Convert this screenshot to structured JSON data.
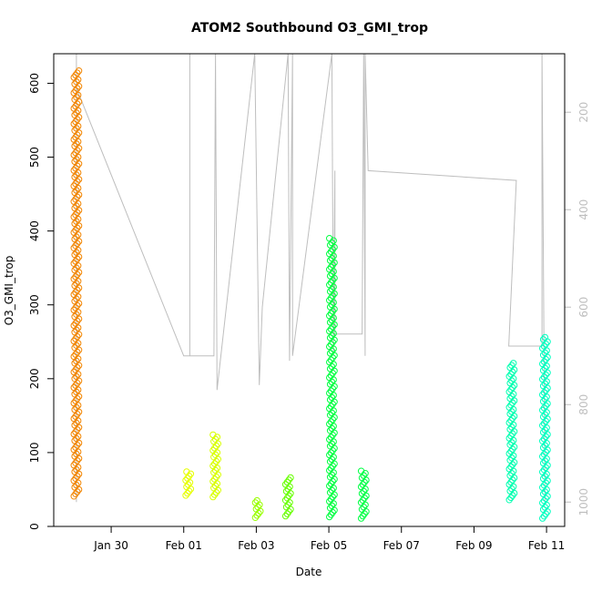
{
  "chart_data": {
    "type": "scatter",
    "title": "ATOM2 Southbound O3_GMI_trop",
    "xlabel": "Date",
    "ylabel": "O3_GMI_trop",
    "xlim": [
      "2017-01-28T10:00",
      "2017-02-11T12:00"
    ],
    "ylim": [
      0,
      640
    ],
    "x_ticks": [
      {
        "date": "2017-01-30",
        "label": "Jan 30"
      },
      {
        "date": "2017-02-01",
        "label": "Feb 01"
      },
      {
        "date": "2017-02-03",
        "label": "Feb 03"
      },
      {
        "date": "2017-02-05",
        "label": "Feb 05"
      },
      {
        "date": "2017-02-07",
        "label": "Feb 07"
      },
      {
        "date": "2017-02-09",
        "label": "Feb 09"
      },
      {
        "date": "2017-02-11",
        "label": "Feb 11"
      }
    ],
    "y_ticks": [
      0,
      100,
      200,
      300,
      400,
      500,
      600
    ],
    "y2_axis": {
      "ticks": [
        200,
        400,
        600,
        800,
        1000
      ],
      "range_top": 80,
      "range_bottom": 1050,
      "reversed": true,
      "color": "#bebebe"
    },
    "marker": "open-circle",
    "series": [
      {
        "date": "2017-01-29T01:00",
        "ymin": 41,
        "ymax": 617,
        "color": "#f28500"
      },
      {
        "date": "2017-02-01T03:00",
        "ymin": 42,
        "ymax": 74,
        "color": "#e6ff00"
      },
      {
        "date": "2017-02-01T21:00",
        "ymin": 40,
        "ymax": 124,
        "color": "#d9ff00"
      },
      {
        "date": "2017-02-03T01:00",
        "ymin": 12,
        "ymax": 35,
        "color": "#99ff00"
      },
      {
        "date": "2017-02-03T21:00",
        "ymin": 14,
        "ymax": 66,
        "color": "#66ff00"
      },
      {
        "date": "2017-02-05T02:00",
        "ymin": 13,
        "ymax": 390,
        "color": "#00ff40"
      },
      {
        "date": "2017-02-05T23:00",
        "ymin": 11,
        "ymax": 75,
        "color": "#00ff44"
      },
      {
        "date": "2017-02-10T01:00",
        "ymin": 36,
        "ymax": 221,
        "color": "#00ffb0"
      },
      {
        "date": "2017-02-10T23:00",
        "ymin": 11,
        "ymax": 256,
        "color": "#00ffc0"
      }
    ],
    "pressure_track": {
      "color": "#bebebe",
      "points": [
        {
          "date": "2017-01-29T01:00",
          "p": 80
        },
        {
          "date": "2017-01-29T01:00",
          "p": 1000
        },
        {
          "date": "2017-01-29T01:00",
          "p": 150
        },
        {
          "date": "2017-02-01T00:00",
          "p": 700
        },
        {
          "date": "2017-02-01T04:00",
          "p": 700
        },
        {
          "date": "2017-02-01T04:00",
          "p": 80
        },
        {
          "date": "2017-02-01T04:00",
          "p": 700
        },
        {
          "date": "2017-02-01T20:00",
          "p": 700
        },
        {
          "date": "2017-02-01T21:00",
          "p": 80
        },
        {
          "date": "2017-02-01T22:00",
          "p": 770
        },
        {
          "date": "2017-02-02T23:00",
          "p": 80
        },
        {
          "date": "2017-02-03T02:00",
          "p": 760
        },
        {
          "date": "2017-02-03T04:00",
          "p": 600
        },
        {
          "date": "2017-02-03T21:00",
          "p": 80
        },
        {
          "date": "2017-02-03T22:00",
          "p": 710
        },
        {
          "date": "2017-02-04T00:00",
          "p": 80
        },
        {
          "date": "2017-02-04T00:00",
          "p": 700
        },
        {
          "date": "2017-02-05T02:00",
          "p": 80
        },
        {
          "date": "2017-02-05T03:00",
          "p": 700
        },
        {
          "date": "2017-02-05T04:00",
          "p": 320
        },
        {
          "date": "2017-02-05T04:00",
          "p": 655
        },
        {
          "date": "2017-02-05T22:00",
          "p": 655
        },
        {
          "date": "2017-02-05T23:00",
          "p": 80
        },
        {
          "date": "2017-02-06T00:00",
          "p": 700
        },
        {
          "date": "2017-02-06T00:00",
          "p": 80
        },
        {
          "date": "2017-02-06T02:00",
          "p": 320
        },
        {
          "date": "2017-02-10T04:00",
          "p": 340
        },
        {
          "date": "2017-02-09T23:00",
          "p": 680
        },
        {
          "date": "2017-02-10T21:00",
          "p": 680
        },
        {
          "date": "2017-02-10T21:00",
          "p": 80
        },
        {
          "date": "2017-02-10T23:00",
          "p": 1000
        }
      ]
    }
  }
}
